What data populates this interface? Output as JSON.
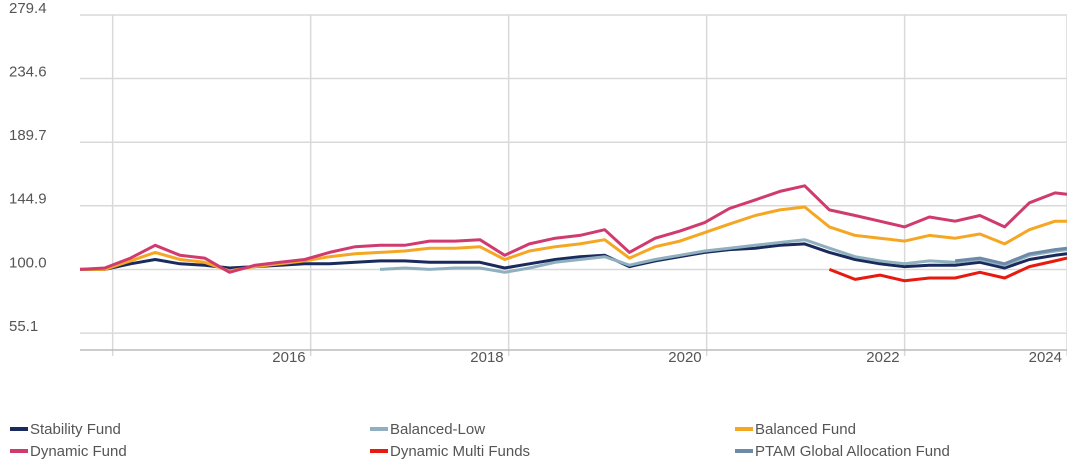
{
  "chart_data": {
    "type": "line",
    "x": [
      2013.67,
      2013.92,
      2014.18,
      2014.43,
      2014.68,
      2014.93,
      2015.18,
      2015.44,
      2015.69,
      2015.94,
      2016.19,
      2016.45,
      2016.7,
      2016.95,
      2017.2,
      2017.46,
      2017.71,
      2017.96,
      2018.21,
      2018.47,
      2018.72,
      2018.97,
      2019.22,
      2019.48,
      2019.73,
      2019.98,
      2020.23,
      2020.49,
      2020.74,
      2020.99,
      2021.24,
      2021.5,
      2021.75,
      2022.0,
      2022.25,
      2022.51,
      2022.76,
      2023.01,
      2023.26,
      2023.52,
      2023.64
    ],
    "series": [
      {
        "name": "Stability Fund",
        "color": "#1b2a5c",
        "values": [
          100,
          100,
          104,
          107,
          104,
          103,
          101,
          102,
          103,
          104,
          104,
          105,
          106,
          106,
          105,
          105,
          105,
          101,
          104,
          107,
          109,
          110,
          102,
          106,
          109,
          112,
          114,
          115,
          117,
          118,
          112,
          107,
          104,
          102,
          103,
          103,
          105,
          101,
          107,
          110,
          111
        ]
      },
      {
        "name": "Balanced-Low",
        "color": "#8fb0bf",
        "values": [
          null,
          null,
          null,
          null,
          null,
          null,
          null,
          null,
          null,
          null,
          null,
          null,
          100,
          101,
          100,
          101,
          101,
          98,
          101,
          105,
          107,
          109,
          103,
          107,
          110,
          113,
          115,
          117,
          119,
          121,
          115,
          109,
          106,
          104,
          106,
          105,
          107,
          103,
          110,
          113,
          114
        ]
      },
      {
        "name": "Balanced Fund",
        "color": "#f5a623",
        "values": [
          100,
          100,
          106,
          112,
          107,
          105,
          99,
          102,
          104,
          106,
          109,
          111,
          112,
          113,
          115,
          115,
          116,
          107,
          113,
          116,
          118,
          121,
          108,
          116,
          120,
          126,
          132,
          138,
          142,
          144,
          130,
          124,
          122,
          120,
          124,
          122,
          125,
          118,
          128,
          134,
          134
        ]
      },
      {
        "name": "Dynamic Fund",
        "color": "#d03b6f",
        "values": [
          100,
          101,
          108,
          117,
          110,
          108,
          98,
          103,
          105,
          107,
          112,
          116,
          117,
          117,
          120,
          120,
          121,
          110,
          118,
          122,
          124,
          128,
          112,
          122,
          127,
          133,
          143,
          149,
          155,
          159,
          142,
          138,
          134,
          130,
          137,
          134,
          138,
          130,
          147,
          154,
          153
        ]
      },
      {
        "name": "Dynamic Multi Funds",
        "color": "#e8190f",
        "values": [
          null,
          null,
          null,
          null,
          null,
          null,
          null,
          null,
          null,
          null,
          null,
          null,
          null,
          null,
          null,
          null,
          null,
          null,
          null,
          null,
          null,
          null,
          null,
          null,
          null,
          null,
          null,
          null,
          null,
          null,
          100,
          93,
          96,
          92,
          94,
          94,
          98,
          94,
          102,
          106,
          108
        ]
      },
      {
        "name": "PTAM Global Allocation Fund",
        "color": "#6e8aa9",
        "values": [
          null,
          null,
          null,
          null,
          null,
          null,
          null,
          null,
          null,
          null,
          null,
          null,
          null,
          null,
          null,
          null,
          null,
          null,
          null,
          null,
          null,
          null,
          null,
          null,
          null,
          null,
          null,
          null,
          null,
          null,
          null,
          null,
          null,
          null,
          null,
          106,
          108,
          104,
          111,
          114,
          115
        ]
      }
    ],
    "xlim": [
      2013.67,
      2023.64
    ],
    "xticks": [
      {
        "value": 2014,
        "label": null
      },
      2016,
      2018,
      2020,
      2022,
      {
        "value": 2023.64,
        "label": "2024"
      }
    ],
    "ylim": [
      43.2,
      279.4
    ],
    "yticks": [
      55.1,
      {
        "value": 100,
        "label": "100.0"
      },
      144.9,
      189.7,
      234.6,
      279.4
    ],
    "grid": true,
    "legend": "bottom"
  }
}
